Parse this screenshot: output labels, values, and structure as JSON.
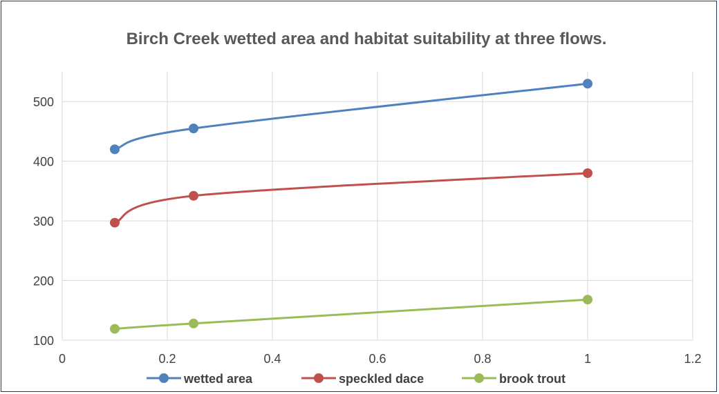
{
  "chart_data": {
    "type": "line",
    "title": "Birch Creek wetted area and habitat suitability at three flows.",
    "xlabel": "",
    "ylabel": "",
    "xlim": [
      0,
      1.2
    ],
    "ylim": [
      100,
      550
    ],
    "x_ticks": [
      "0",
      "0.2",
      "0.4",
      "0.6",
      "0.8",
      "1",
      "1.2"
    ],
    "y_ticks": [
      "100",
      "200",
      "300",
      "400",
      "500"
    ],
    "grid": true,
    "smooth": true,
    "legend_position": "bottom",
    "x": [
      0.1,
      0.25,
      1
    ],
    "series": [
      {
        "name": "wetted area",
        "color": "#4f81bd",
        "values": [
          420,
          455,
          530
        ]
      },
      {
        "name": "speckled dace",
        "color": "#c0504d",
        "values": [
          297,
          342,
          380
        ]
      },
      {
        "name": "brook trout",
        "color": "#9bbb59",
        "values": [
          119,
          128,
          168
        ]
      }
    ]
  }
}
